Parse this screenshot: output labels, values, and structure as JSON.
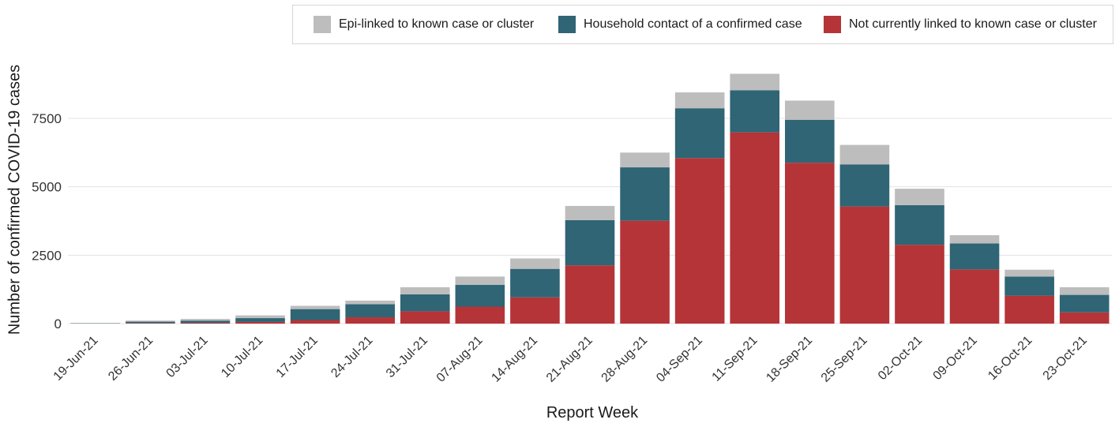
{
  "chart_data": {
    "type": "bar",
    "stacked": true,
    "categories": [
      "19-Jun-21",
      "26-Jun-21",
      "03-Jul-21",
      "10-Jul-21",
      "17-Jul-21",
      "24-Jul-21",
      "31-Jul-21",
      "07-Aug-21",
      "14-Aug-21",
      "21-Aug-21",
      "28-Aug-21",
      "04-Sep-21",
      "11-Sep-21",
      "18-Sep-21",
      "25-Sep-21",
      "02-Oct-21",
      "09-Oct-21",
      "16-Oct-21",
      "23-Oct-21"
    ],
    "series": [
      {
        "name": "Not currently linked to known case or cluster",
        "color": "#b53438",
        "values": [
          5,
          20,
          30,
          60,
          130,
          230,
          450,
          620,
          960,
          2130,
          3760,
          6050,
          6990,
          5880,
          4280,
          2880,
          1980,
          1020,
          410
        ]
      },
      {
        "name": "Household contact of a confirmed case",
        "color": "#2f6575",
        "values": [
          10,
          50,
          80,
          140,
          400,
          480,
          620,
          800,
          1040,
          1650,
          1950,
          1820,
          1540,
          1570,
          1540,
          1450,
          950,
          700,
          640
        ]
      },
      {
        "name": "Epi-linked to known case or cluster",
        "color": "#bdbdbd",
        "values": [
          5,
          40,
          60,
          100,
          120,
          130,
          260,
          300,
          380,
          520,
          540,
          580,
          600,
          700,
          710,
          600,
          300,
          250,
          280
        ]
      }
    ],
    "legend_order": [
      "Epi-linked to known case or cluster",
      "Household contact of a confirmed case",
      "Not currently linked to known case or cluster"
    ],
    "xlabel": "Report Week",
    "ylabel": "Number of confirmed COVID-19 cases",
    "yticks": [
      0,
      2500,
      5000,
      7500
    ],
    "ylim": [
      0,
      9200
    ],
    "grid": "horizontal",
    "legend_position": "top-right"
  }
}
